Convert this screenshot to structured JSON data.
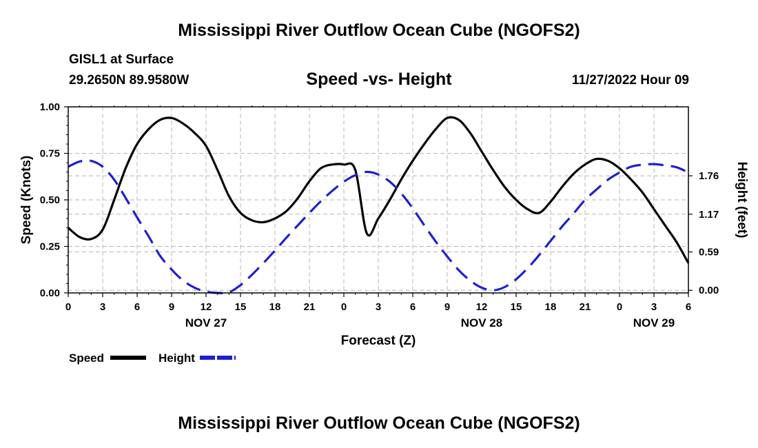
{
  "main_title": "Mississippi River Outflow Ocean Cube (NGOFS2)",
  "footer_title": "Mississippi River Outflow Ocean Cube (NGOFS2)",
  "station": {
    "name": "GISL1 at Surface",
    "coords": "29.2650N  89.9580W"
  },
  "subtitle": "Speed -vs- Height",
  "timestamp": "11/27/2022 Hour 09",
  "chart_data": {
    "type": "line",
    "title": "Speed -vs- Height",
    "xlabel": "Forecast (Z)",
    "ylabel_left": "Speed (Knots)",
    "ylabel_right": "Height (feet)",
    "x_range_hours": [
      0,
      54
    ],
    "x_tick_labels": [
      "0",
      "3",
      "6",
      "9",
      "12",
      "15",
      "18",
      "21",
      "0",
      "3",
      "6",
      "9",
      "12",
      "15",
      "18",
      "21",
      "0",
      "3",
      "6"
    ],
    "date_labels": [
      {
        "hour": 12,
        "label": "NOV 27"
      },
      {
        "hour": 36,
        "label": "NOV 28"
      },
      {
        "hour": 51,
        "label": "NOV 29"
      }
    ],
    "y_left": {
      "min": 0,
      "max": 1.0,
      "ticks": [
        0,
        0.25,
        0.5,
        0.75,
        1.0
      ],
      "tick_labels": [
        "0.00",
        "0.25",
        "0.50",
        "0.75",
        "1.00"
      ]
    },
    "y_right": {
      "min": -0.04,
      "max": 2.82,
      "ticks": [
        0,
        0.59,
        1.17,
        1.76
      ],
      "tick_labels": [
        "0.00",
        "0.59",
        "1.17",
        "1.76"
      ]
    },
    "grid": true,
    "legend": [
      {
        "name": "Speed",
        "color": "#000000",
        "dash": "solid"
      },
      {
        "name": "Height",
        "color": "#1f1fd0",
        "dash": "dashed"
      }
    ],
    "series": [
      {
        "name": "Speed",
        "axis": "left",
        "color": "#000000",
        "x": [
          0,
          1,
          2,
          3,
          4,
          5,
          6,
          7,
          8,
          9,
          10,
          11,
          12,
          13,
          14,
          15,
          16,
          17,
          18,
          19,
          20,
          21,
          22,
          23,
          24,
          25,
          26,
          27,
          28,
          29,
          30,
          31,
          32,
          33,
          34,
          35,
          36,
          37,
          38,
          39,
          40,
          41,
          42,
          43,
          44,
          45,
          46,
          47,
          48,
          49,
          50,
          51,
          52,
          53,
          54
        ],
        "values": [
          0.35,
          0.3,
          0.29,
          0.34,
          0.5,
          0.67,
          0.8,
          0.88,
          0.93,
          0.94,
          0.91,
          0.86,
          0.79,
          0.66,
          0.52,
          0.43,
          0.39,
          0.38,
          0.4,
          0.44,
          0.51,
          0.6,
          0.67,
          0.69,
          0.69,
          0.66,
          0.32,
          0.4,
          0.5,
          0.61,
          0.71,
          0.8,
          0.88,
          0.94,
          0.93,
          0.86,
          0.76,
          0.66,
          0.57,
          0.5,
          0.45,
          0.43,
          0.49,
          0.57,
          0.64,
          0.69,
          0.72,
          0.71,
          0.67,
          0.61,
          0.54,
          0.45,
          0.36,
          0.27,
          0.16
        ]
      },
      {
        "name": "Height",
        "axis": "right",
        "color": "#1f1fd0",
        "x": [
          0,
          1,
          2,
          3,
          4,
          5,
          6,
          7,
          8,
          9,
          10,
          11,
          12,
          13,
          14,
          15,
          16,
          17,
          18,
          19,
          20,
          21,
          22,
          23,
          24,
          25,
          26,
          27,
          28,
          29,
          30,
          31,
          32,
          33,
          34,
          35,
          36,
          37,
          38,
          39,
          40,
          41,
          42,
          43,
          44,
          45,
          46,
          47,
          48,
          49,
          50,
          51,
          52,
          53,
          54
        ],
        "values": [
          1.9,
          1.98,
          1.99,
          1.9,
          1.7,
          1.42,
          1.12,
          0.83,
          0.53,
          0.32,
          0.15,
          0.04,
          -0.02,
          -0.04,
          -0.03,
          0.08,
          0.24,
          0.42,
          0.61,
          0.81,
          1.0,
          1.19,
          1.37,
          1.53,
          1.67,
          1.77,
          1.82,
          1.78,
          1.67,
          1.49,
          1.26,
          1.0,
          0.75,
          0.52,
          0.31,
          0.15,
          0.04,
          0.0,
          0.05,
          0.17,
          0.34,
          0.54,
          0.76,
          0.98,
          1.18,
          1.39,
          1.55,
          1.7,
          1.81,
          1.9,
          1.93,
          1.94,
          1.92,
          1.89,
          1.81
        ]
      }
    ]
  }
}
